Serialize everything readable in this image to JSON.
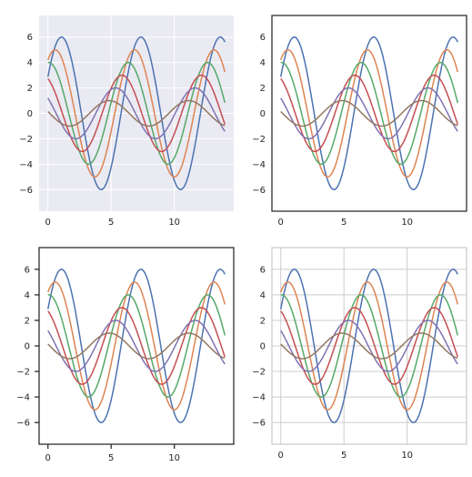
{
  "figure": {
    "layout": "2x2 grid",
    "background": "#ffffff"
  },
  "chart_data": [
    {
      "type": "line",
      "style": "darkgrid",
      "background": "#eaeaf2",
      "gridColor": "#ffffff",
      "grid": true,
      "frame": "none",
      "ticks": false,
      "xlim": [
        -0.7,
        14.7
      ],
      "ylim": [
        -7.7,
        7.7
      ],
      "xticks": [
        0,
        5,
        10
      ],
      "yticks": [
        -6,
        -4,
        -2,
        0,
        2,
        4,
        6
      ],
      "series_formula": "y = sin(x + i*0.5) * (7 - i), x from 0 to 14, i = 1..6",
      "series": [
        {
          "amplitude": 6,
          "phase": 0.5,
          "color": "#4c72b0"
        },
        {
          "amplitude": 5,
          "phase": 1.0,
          "color": "#dd8452"
        },
        {
          "amplitude": 4,
          "phase": 1.5,
          "color": "#55a868"
        },
        {
          "amplitude": 3,
          "phase": 2.0,
          "color": "#c44e52"
        },
        {
          "amplitude": 2,
          "phase": 2.5,
          "color": "#8172b3"
        },
        {
          "amplitude": 1,
          "phase": 3.0,
          "color": "#937860"
        }
      ]
    },
    {
      "type": "line",
      "style": "white",
      "background": "#ffffff",
      "grid": false,
      "frame": "full",
      "frameColor": "#262626",
      "ticks": false,
      "xlim": [
        -0.7,
        14.7
      ],
      "ylim": [
        -7.7,
        7.7
      ],
      "xticks": [
        0,
        5,
        10
      ],
      "yticks": [
        -6,
        -4,
        -2,
        0,
        2,
        4,
        6
      ]
    },
    {
      "type": "line",
      "style": "ticks",
      "background": "#ffffff",
      "grid": false,
      "frame": "full",
      "frameColor": "#262626",
      "ticks": true,
      "xlim": [
        -0.7,
        14.7
      ],
      "ylim": [
        -7.7,
        7.7
      ],
      "xticks": [
        0,
        5,
        10
      ],
      "yticks": [
        -6,
        -4,
        -2,
        0,
        2,
        4,
        6
      ]
    },
    {
      "type": "line",
      "style": "whitegrid",
      "background": "#ffffff",
      "grid": true,
      "gridColor": "#cccccc",
      "frame": "full",
      "frameColor": "#cccccc",
      "ticks": false,
      "xlim": [
        -0.7,
        14.7
      ],
      "ylim": [
        -7.7,
        7.7
      ],
      "xticks": [
        0,
        5,
        10
      ],
      "yticks": [
        -6,
        -4,
        -2,
        0,
        2,
        4,
        6
      ]
    }
  ]
}
